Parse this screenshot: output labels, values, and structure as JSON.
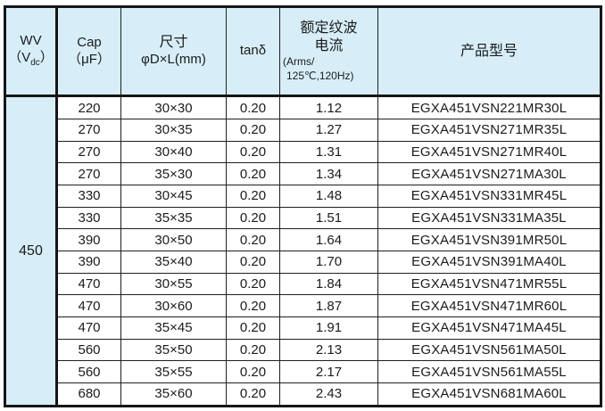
{
  "colors": {
    "header_bg": "#d7eef8",
    "border": "#161616",
    "text": "#1b1b1b",
    "row_bg": "#ffffff"
  },
  "table": {
    "headers": {
      "wv": {
        "line1": "WV",
        "l2_pre": "（V",
        "l2_sub": "dc",
        "l2_post": "）"
      },
      "cap": {
        "line1": "Cap",
        "line2": "（μF）"
      },
      "size": {
        "line1": "尺寸",
        "line2": "φD×L(mm)"
      },
      "tand": {
        "label": "tanδ"
      },
      "ripple": {
        "line1": "额定纹波",
        "line2": "电流",
        "line3": "(Arms/",
        "line4": "125℃,120Hz)"
      },
      "model": {
        "label": "产品型号"
      }
    },
    "wv_value": "450",
    "rows": [
      {
        "cap": "220",
        "size": "30×30",
        "tand": "0.20",
        "ripple": "1.12",
        "model": "EGXA451VSN221MR30L"
      },
      {
        "cap": "270",
        "size": "30×35",
        "tand": "0.20",
        "ripple": "1.27",
        "model": "EGXA451VSN271MR35L"
      },
      {
        "cap": "270",
        "size": "30×40",
        "tand": "0.20",
        "ripple": "1.31",
        "model": "EGXA451VSN271MR40L"
      },
      {
        "cap": "270",
        "size": "35×30",
        "tand": "0.20",
        "ripple": "1.34",
        "model": "EGXA451VSN271MA30L"
      },
      {
        "cap": "330",
        "size": "30×45",
        "tand": "0.20",
        "ripple": "1.48",
        "model": "EGXA451VSN331MR45L"
      },
      {
        "cap": "330",
        "size": "35×35",
        "tand": "0.20",
        "ripple": "1.51",
        "model": "EGXA451VSN331MA35L"
      },
      {
        "cap": "390",
        "size": "30×50",
        "tand": "0.20",
        "ripple": "1.64",
        "model": "EGXA451VSN391MR50L"
      },
      {
        "cap": "390",
        "size": "35×40",
        "tand": "0.20",
        "ripple": "1.70",
        "model": "EGXA451VSN391MA40L"
      },
      {
        "cap": "470",
        "size": "30×55",
        "tand": "0.20",
        "ripple": "1.84",
        "model": "EGXA451VSN471MR55L"
      },
      {
        "cap": "470",
        "size": "30×60",
        "tand": "0.20",
        "ripple": "1.87",
        "model": "EGXA451VSN471MR60L"
      },
      {
        "cap": "470",
        "size": "35×45",
        "tand": "0.20",
        "ripple": "1.91",
        "model": "EGXA451VSN471MA45L"
      },
      {
        "cap": "560",
        "size": "35×50",
        "tand": "0.20",
        "ripple": "2.13",
        "model": "EGXA451VSN561MA50L"
      },
      {
        "cap": "560",
        "size": "35×55",
        "tand": "0.20",
        "ripple": "2.17",
        "model": "EGXA451VSN561MA55L"
      },
      {
        "cap": "680",
        "size": "35×60",
        "tand": "0.20",
        "ripple": "2.43",
        "model": "EGXA451VSN681MA60L"
      }
    ]
  }
}
